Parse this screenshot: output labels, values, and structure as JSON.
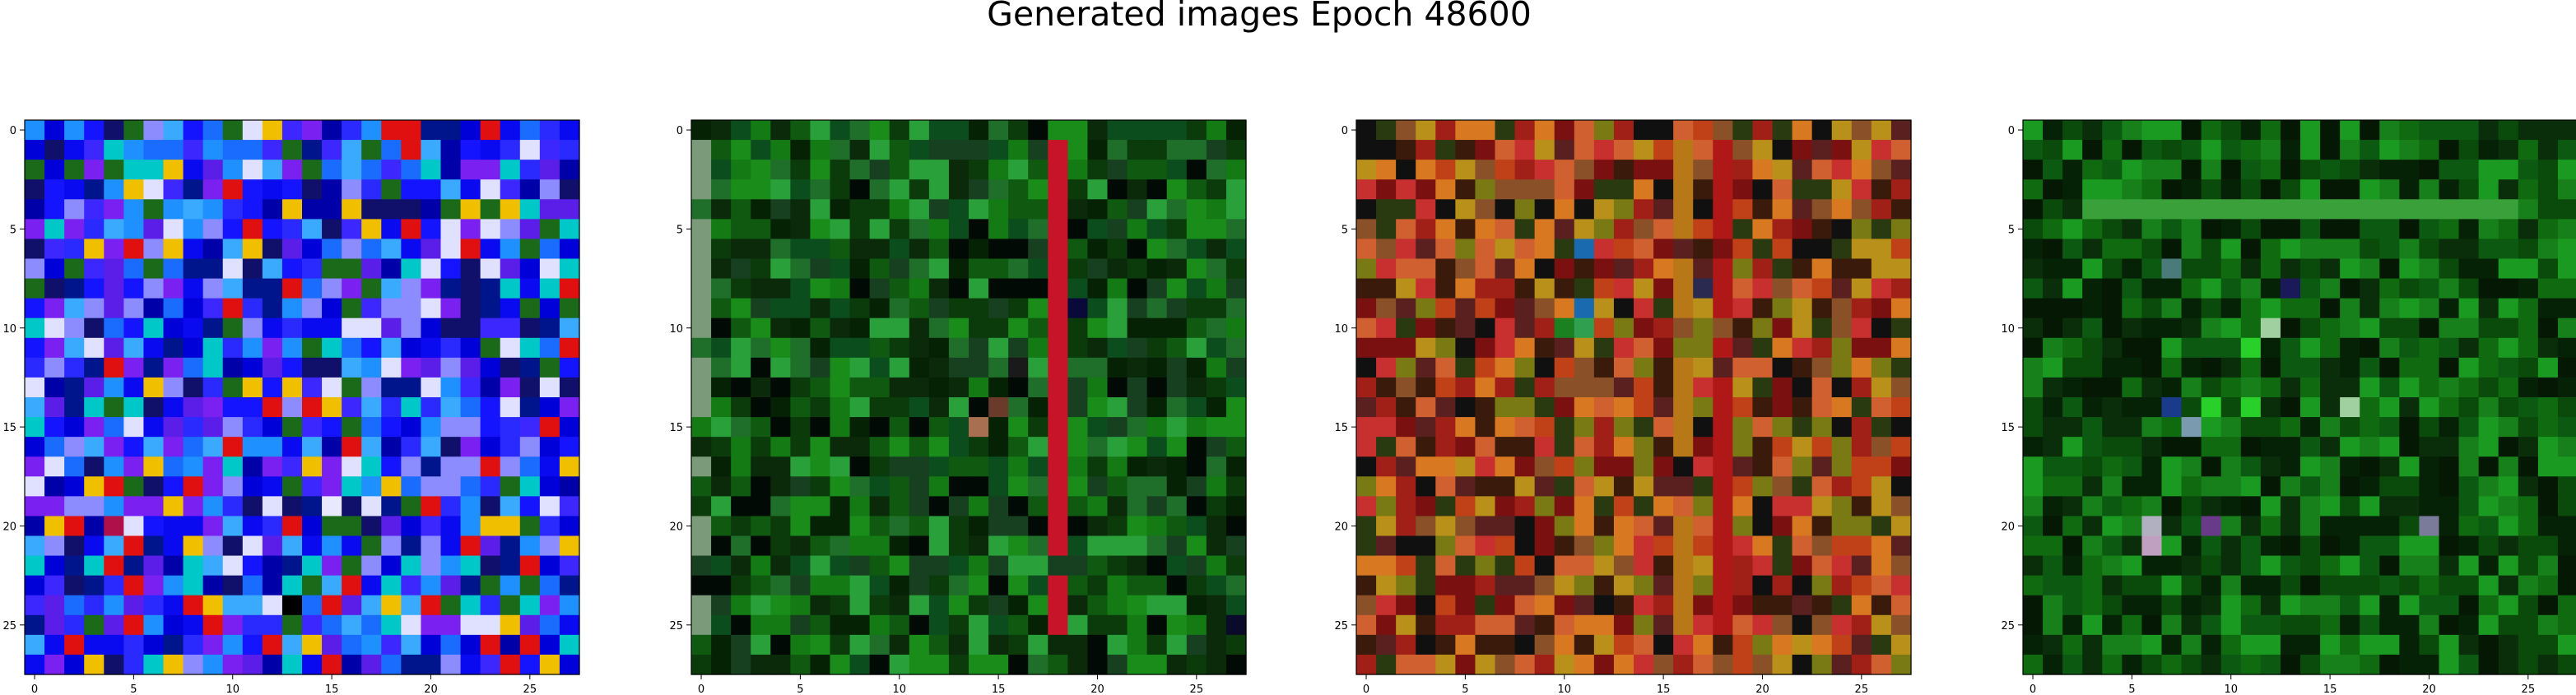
{
  "figure": {
    "title": "Generated images Epoch 48600",
    "axis_ticks": {
      "x": [
        "0",
        "5",
        "10",
        "15",
        "20",
        "25"
      ],
      "y": [
        "0",
        "5",
        "10",
        "15",
        "20",
        "25"
      ]
    }
  },
  "chart_data": [
    {
      "type": "heatmap",
      "grid": [
        28,
        28
      ],
      "xlim": [
        -0.5,
        27.5
      ],
      "ylim": [
        27.5,
        -0.5
      ],
      "palette": [
        "#0a0af0",
        "#1414ff",
        "#0000d8",
        "#2a2aff",
        "#3c28ff",
        "#5a1ee8",
        "#7a20f0",
        "#1a6cff",
        "#1e90ff",
        "#8c8cff",
        "#0000a8",
        "#10106a",
        "#00148c",
        "#3aaaff",
        "#00c8c8",
        "#e0e0ff",
        "#e01010",
        "#f0c000",
        "#1a6a1a"
      ],
      "accents": [
        {
          "row": 14,
          "col": 14,
          "color": "#e01010"
        },
        {
          "row": 14,
          "col": 15,
          "color": "#f0c000"
        },
        {
          "row": 13,
          "col": 15,
          "color": "#e0e0ff"
        },
        {
          "row": 11,
          "col": 15,
          "color": "#00c8c8"
        },
        {
          "row": 11,
          "col": 14,
          "color": "#1a6a1a"
        },
        {
          "row": 20,
          "col": 4,
          "color": "#b0104a"
        },
        {
          "row": 19,
          "col": 15,
          "color": "#e8e8ff"
        },
        {
          "row": 23,
          "col": 14,
          "color": "#1a6a1a"
        },
        {
          "row": 24,
          "col": 13,
          "color": "#000000"
        }
      ]
    },
    {
      "type": "heatmap",
      "grid": [
        28,
        28
      ],
      "xlim": [
        -0.5,
        27.5
      ],
      "ylim": [
        27.5,
        -0.5
      ],
      "palette": [
        "#0b3a0b",
        "#0f5a10",
        "#137a14",
        "#1a8c1a",
        "#0a2a0a",
        "#052205",
        "#1f6e2a",
        "#0c4d1e",
        "#020a06",
        "#2aa03a",
        "#174020"
      ],
      "stripes": [
        {
          "col": 18,
          "color": "#c81428"
        },
        {
          "col": 0,
          "color": "#7a9a7a"
        }
      ],
      "accents": [
        {
          "row": 15,
          "col": 14,
          "color": "#a87050"
        },
        {
          "row": 14,
          "col": 15,
          "color": "#6a3a2a"
        },
        {
          "row": 9,
          "col": 19,
          "color": "#0a0a3a"
        },
        {
          "row": 25,
          "col": 27,
          "color": "#0a0a2a"
        },
        {
          "row": 12,
          "col": 16,
          "color": "#1a1a1a"
        }
      ]
    },
    {
      "type": "heatmap",
      "grid": [
        28,
        28
      ],
      "xlim": [
        -0.5,
        27.5
      ],
      "ylim": [
        27.5,
        -0.5
      ],
      "palette": [
        "#7a1010",
        "#a02018",
        "#c04018",
        "#d87820",
        "#b8901a",
        "#7a7a14",
        "#3a1a0a",
        "#101010",
        "#c83030",
        "#2a3a10",
        "#8a5028",
        "#d06030",
        "#5a2020"
      ],
      "stripes": [
        {
          "col": 18,
          "color": "#b01818"
        },
        {
          "col": 16,
          "color": "#b87818"
        }
      ],
      "accents": [
        {
          "row": 9,
          "col": 11,
          "color": "#1a6ab0"
        },
        {
          "row": 10,
          "col": 11,
          "color": "#30a050"
        },
        {
          "row": 10,
          "col": 10,
          "color": "#1a8020"
        },
        {
          "row": 6,
          "col": 11,
          "color": "#1a6ab0"
        },
        {
          "row": 8,
          "col": 17,
          "color": "#2a2a50"
        }
      ]
    },
    {
      "type": "heatmap",
      "grid": [
        28,
        28
      ],
      "xlim": [
        -0.5,
        27.5
      ],
      "ylim": [
        27.5,
        -0.5
      ],
      "palette": [
        "#0a4a0a",
        "#106a10",
        "#18801a",
        "#0a2e0a",
        "#041804",
        "#1a9a20",
        "#0c5a12",
        "#062206"
      ],
      "bands": [
        {
          "row": 4,
          "from": 3,
          "to": 24,
          "color": "#3aa03a"
        }
      ],
      "accents": [
        {
          "row": 14,
          "col": 7,
          "color": "#1a3a8a"
        },
        {
          "row": 15,
          "col": 8,
          "color": "#7a9ab0"
        },
        {
          "row": 7,
          "col": 7,
          "color": "#4a7a7a"
        },
        {
          "row": 20,
          "col": 6,
          "color": "#b0b0c0"
        },
        {
          "row": 21,
          "col": 6,
          "color": "#c0a0c0"
        },
        {
          "row": 20,
          "col": 9,
          "color": "#6a3a8a"
        },
        {
          "row": 11,
          "col": 11,
          "color": "#2ad02a"
        },
        {
          "row": 10,
          "col": 12,
          "color": "#a0d0a0"
        },
        {
          "row": 14,
          "col": 11,
          "color": "#2ad02a"
        },
        {
          "row": 14,
          "col": 16,
          "color": "#a0d0a0"
        },
        {
          "row": 14,
          "col": 9,
          "color": "#2ad02a"
        },
        {
          "row": 8,
          "col": 13,
          "color": "#1a1a5a"
        },
        {
          "row": 20,
          "col": 20,
          "color": "#7a7a9a"
        }
      ]
    }
  ]
}
